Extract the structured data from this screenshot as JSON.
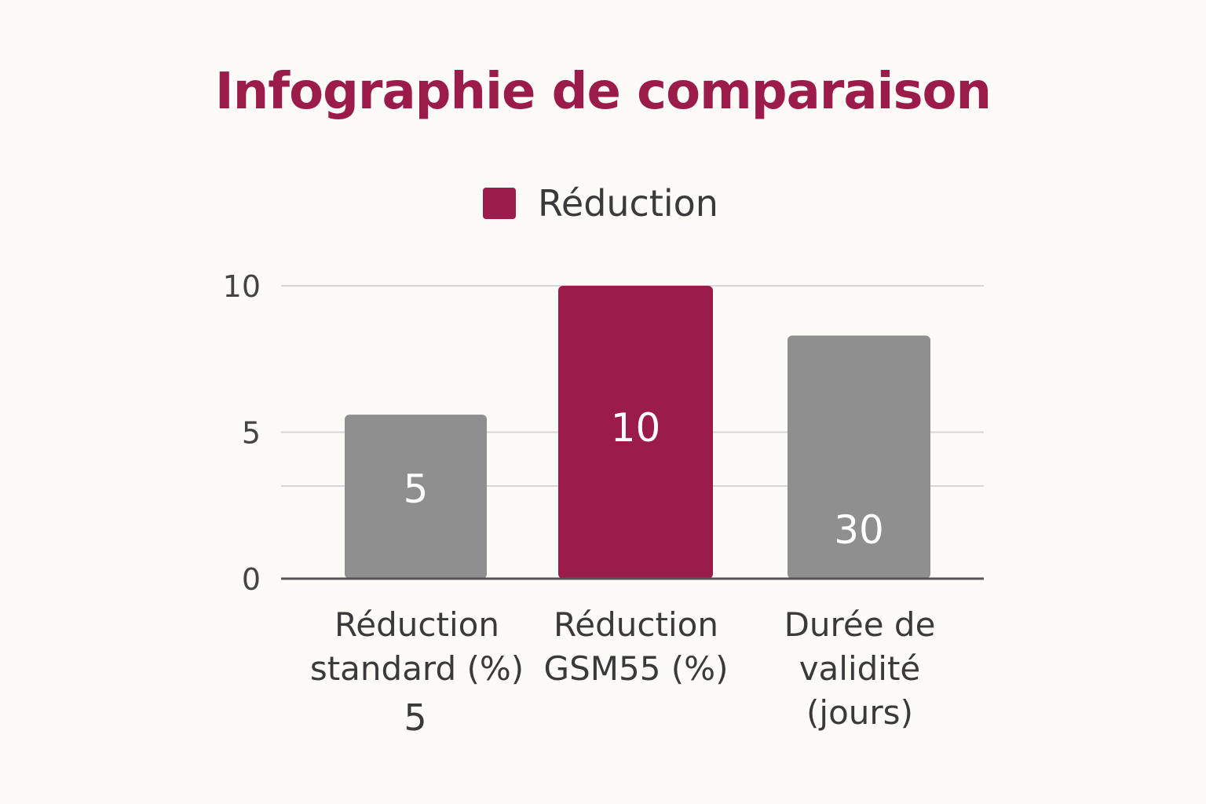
{
  "chart_data": {
    "type": "bar",
    "title": "Infographie de comparaison",
    "legend": {
      "label": "Réduction",
      "color": "#9b1b4a",
      "placement": "top-center"
    },
    "categories": [
      "Réduction standard (%)",
      "Réduction GSM55 (%)",
      "Durée de validité (jours)"
    ],
    "category_label_lines": [
      "Réduction\nstandard (%)",
      "Réduction\nGSM55 (%)",
      "Durée de\nvalidité (jours)"
    ],
    "values": [
      5,
      10,
      30
    ],
    "data_labels": [
      "5",
      "10",
      "30"
    ],
    "bar_colors": [
      "#8f8f8f",
      "#9b1b4a",
      "#8f8f8f"
    ],
    "y_ticks": [
      "0",
      "5",
      "10"
    ],
    "ylim": [
      0,
      10
    ],
    "grid": true,
    "xlabel": "",
    "ylabel": "",
    "extra_label_below": "5"
  }
}
